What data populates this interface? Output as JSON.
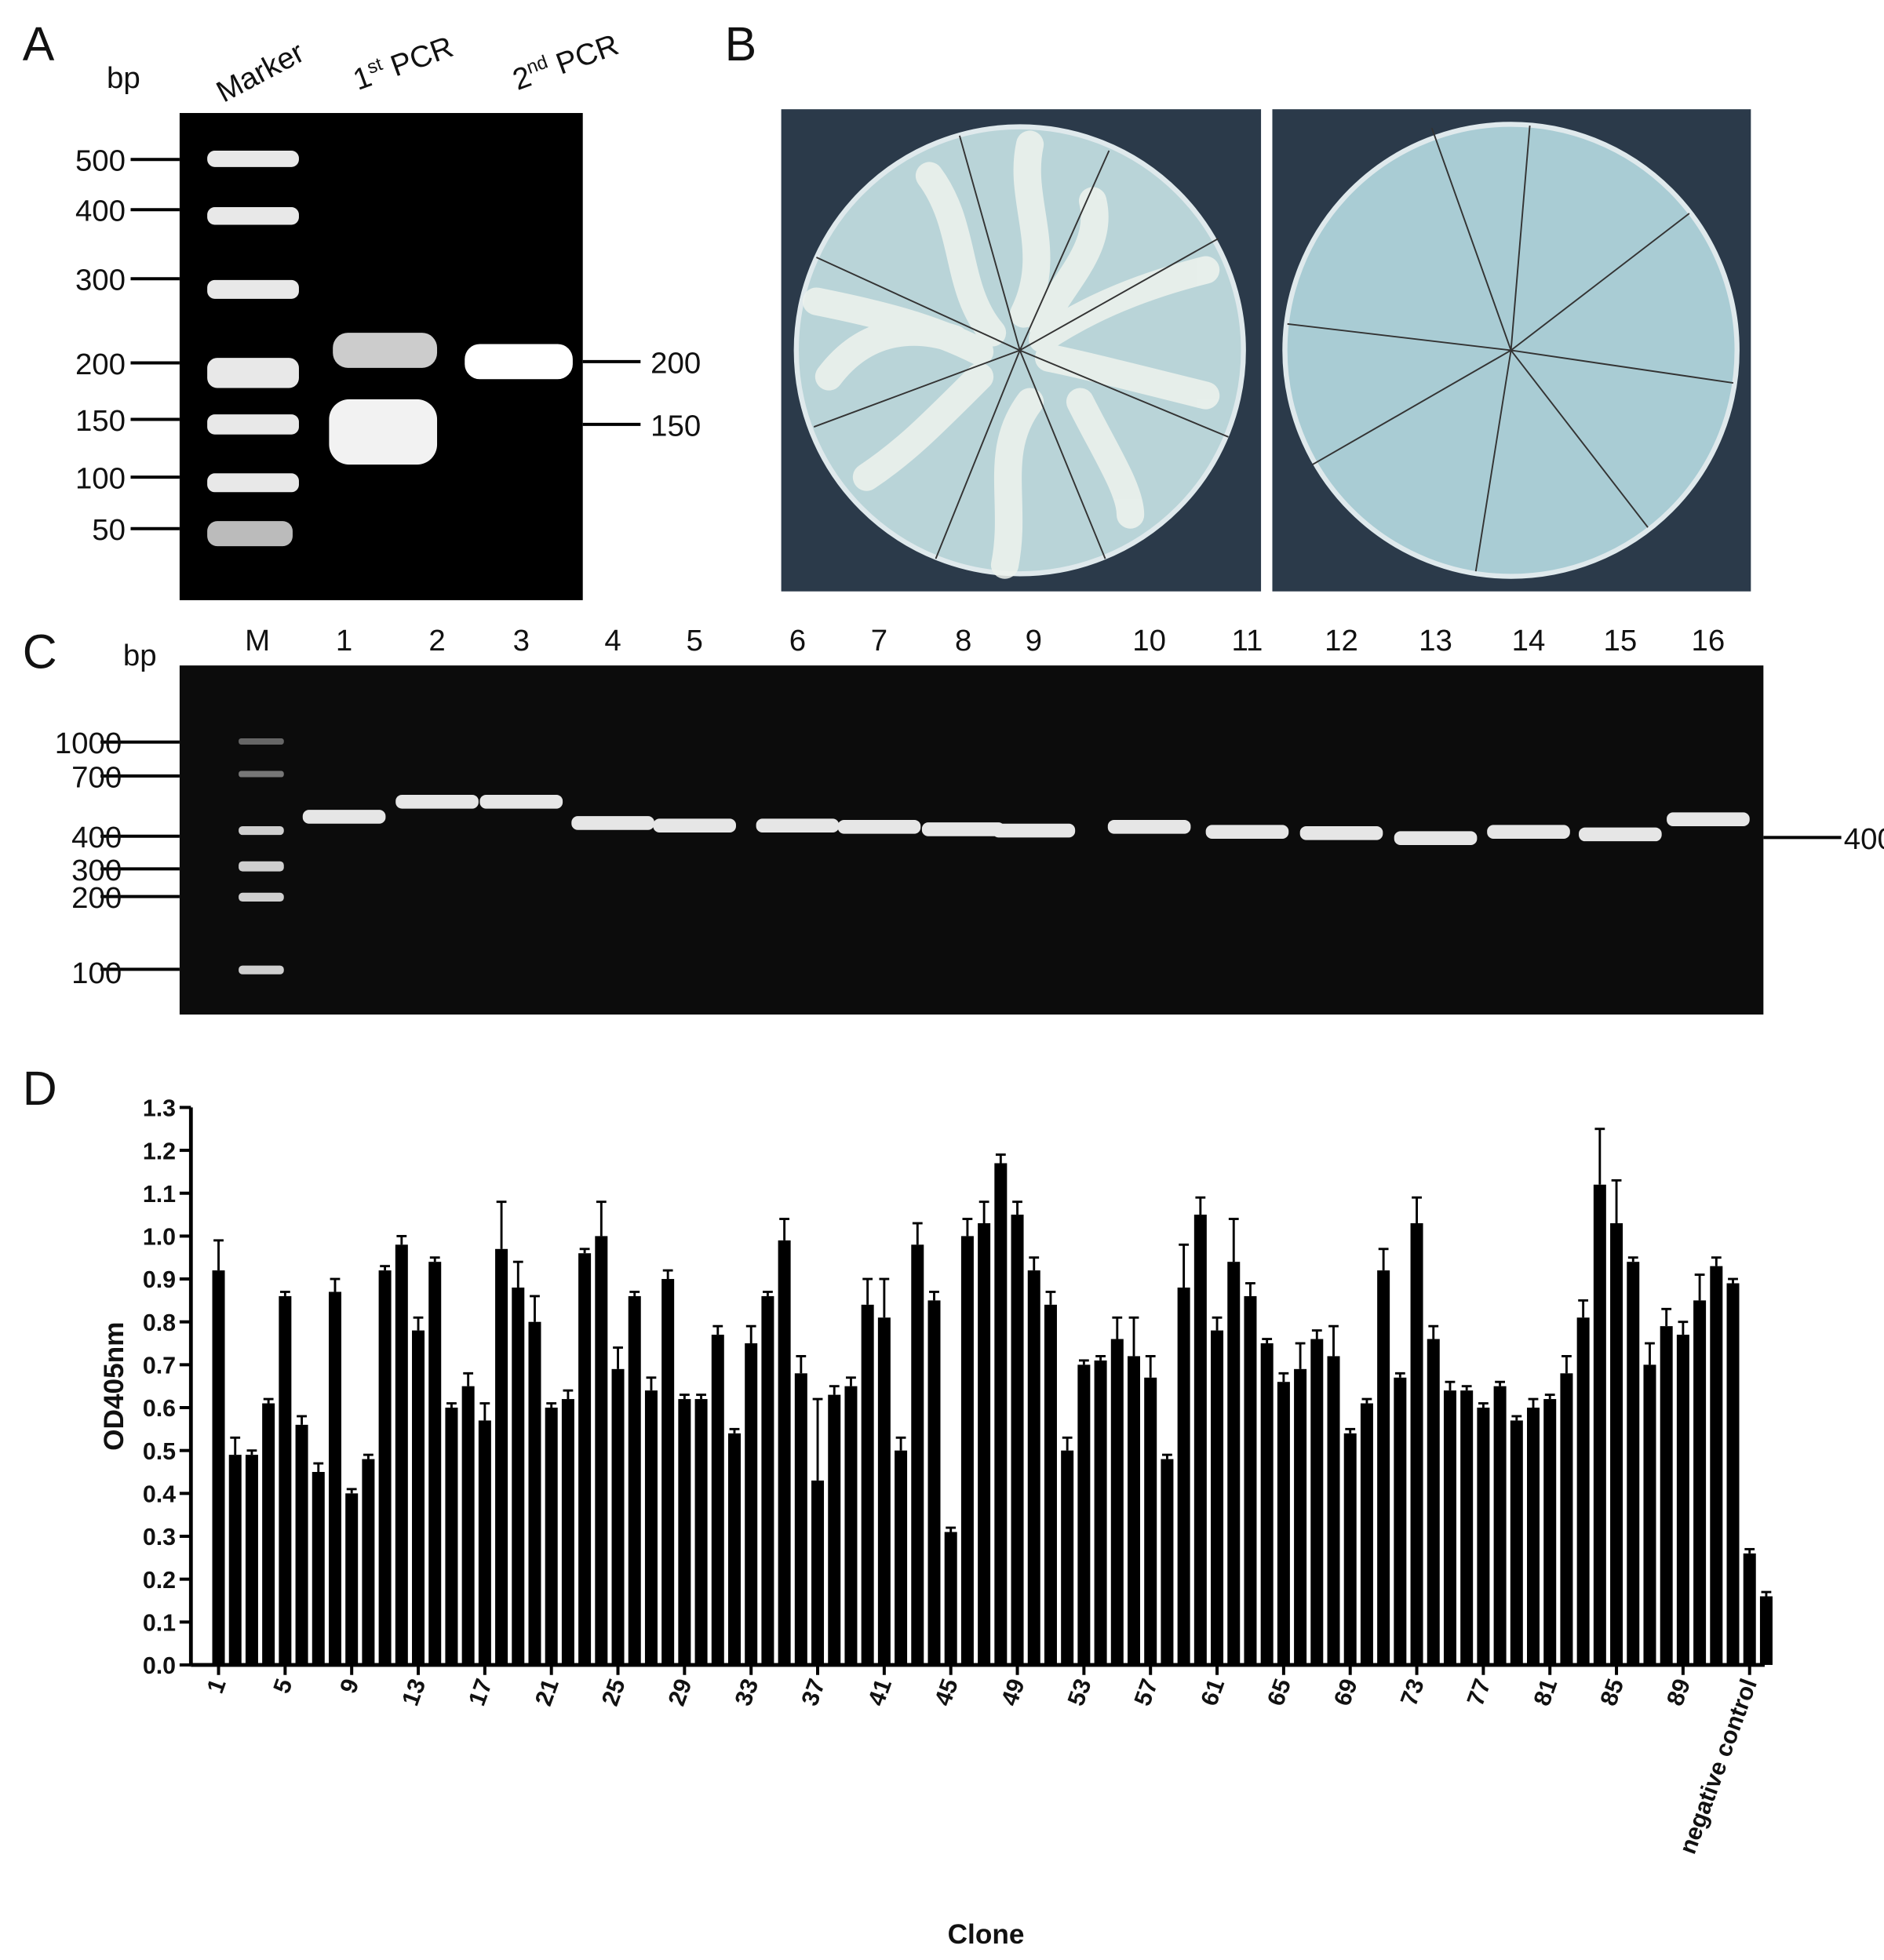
{
  "panel_a": {
    "letter": "A",
    "unit": "bp",
    "lanes": [
      "Marker",
      {
        "base": "1",
        "sup": "st",
        "rest": " PCR"
      },
      {
        "base": "2",
        "sup": "nd",
        "rest": " PCR"
      }
    ],
    "ladder": [
      "500",
      "400",
      "300",
      "200",
      "150",
      "100",
      "50"
    ],
    "sizes": [
      "200",
      "150"
    ]
  },
  "panel_b": {
    "letter": "B"
  },
  "panel_c": {
    "letter": "C",
    "unit": "bp",
    "lanes": [
      "M",
      "1",
      "2",
      "3",
      "4",
      "5",
      "6",
      "7",
      "8",
      "9",
      "10",
      "11",
      "12",
      "13",
      "14",
      "15",
      "16"
    ],
    "ladder": [
      "1000",
      "700",
      "400",
      "300",
      "200",
      "100"
    ],
    "size": "400"
  },
  "panel_d": {
    "letter": "D"
  },
  "chart_data": {
    "type": "bar",
    "x_label": "Clone",
    "y_label": "OD405nm",
    "color": "#000000",
    "categories": [
      "1",
      null,
      null,
      null,
      "5",
      null,
      null,
      null,
      "9",
      null,
      null,
      null,
      "13",
      null,
      null,
      null,
      "17",
      null,
      null,
      null,
      "21",
      null,
      null,
      null,
      "25",
      null,
      null,
      null,
      "29",
      null,
      null,
      null,
      "33",
      null,
      null,
      null,
      "37",
      null,
      null,
      null,
      "41",
      null,
      null,
      null,
      "45",
      null,
      null,
      null,
      "49",
      null,
      null,
      null,
      "53",
      null,
      null,
      null,
      "57",
      null,
      null,
      null,
      "61",
      null,
      null,
      null,
      "65",
      null,
      null,
      null,
      "69",
      null,
      null,
      null,
      "73",
      null,
      null,
      null,
      "77",
      null,
      null,
      null,
      "81",
      null,
      null,
      null,
      "85",
      null,
      null,
      null,
      "89",
      null,
      null,
      null,
      "negative control",
      null
    ],
    "values": [
      0.92,
      0.49,
      0.49,
      0.61,
      0.86,
      0.56,
      0.45,
      0.87,
      0.4,
      0.48,
      0.92,
      0.98,
      0.78,
      0.94,
      0.6,
      0.65,
      0.57,
      0.97,
      0.88,
      0.8,
      0.6,
      0.62,
      0.96,
      1.0,
      0.69,
      0.86,
      0.64,
      0.9,
      0.62,
      0.62,
      0.77,
      0.54,
      0.75,
      0.86,
      0.99,
      0.68,
      0.43,
      0.63,
      0.65,
      0.84,
      0.81,
      0.5,
      0.98,
      0.85,
      0.31,
      1.0,
      1.03,
      1.17,
      1.05,
      0.92,
      0.84,
      0.5,
      0.7,
      0.71,
      0.76,
      0.72,
      0.67,
      0.48,
      0.88,
      1.05,
      0.78,
      0.94,
      0.86,
      0.75,
      0.66,
      0.69,
      0.76,
      0.72,
      0.54,
      0.61,
      0.92,
      0.67,
      1.03,
      0.76,
      0.64,
      0.64,
      0.6,
      0.65,
      0.57,
      0.6,
      0.62,
      0.68,
      0.81,
      1.12,
      1.03,
      0.94,
      0.7,
      0.79,
      0.77,
      0.85,
      0.93,
      0.89,
      0.26,
      0.16
    ],
    "errors": [
      0.07,
      0.04,
      0.01,
      0.01,
      0.01,
      0.02,
      0.02,
      0.03,
      0.01,
      0.01,
      0.01,
      0.02,
      0.03,
      0.01,
      0.01,
      0.03,
      0.04,
      0.11,
      0.06,
      0.06,
      0.01,
      0.02,
      0.01,
      0.08,
      0.05,
      0.01,
      0.03,
      0.02,
      0.01,
      0.01,
      0.02,
      0.01,
      0.04,
      0.01,
      0.05,
      0.04,
      0.19,
      0.02,
      0.02,
      0.06,
      0.09,
      0.03,
      0.05,
      0.02,
      0.01,
      0.04,
      0.05,
      0.02,
      0.03,
      0.03,
      0.03,
      0.03,
      0.01,
      0.01,
      0.05,
      0.09,
      0.05,
      0.01,
      0.1,
      0.04,
      0.03,
      0.1,
      0.03,
      0.01,
      0.02,
      0.06,
      0.02,
      0.07,
      0.01,
      0.01,
      0.05,
      0.01,
      0.06,
      0.03,
      0.02,
      0.01,
      0.01,
      0.01,
      0.01,
      0.02,
      0.01,
      0.04,
      0.04,
      0.13,
      0.1,
      0.01,
      0.05,
      0.04,
      0.03,
      0.06,
      0.02,
      0.01,
      0.01,
      0.01
    ],
    "ylim": [
      0,
      1.3
    ],
    "yticks": [
      {
        "value": 0,
        "label": "0.0"
      },
      0.1,
      0.2,
      0.3,
      0.4,
      0.5,
      0.6,
      0.7,
      0.8,
      0.9,
      {
        "value": 1,
        "label": "1.0"
      },
      1.1,
      1.2,
      1.3
    ]
  }
}
